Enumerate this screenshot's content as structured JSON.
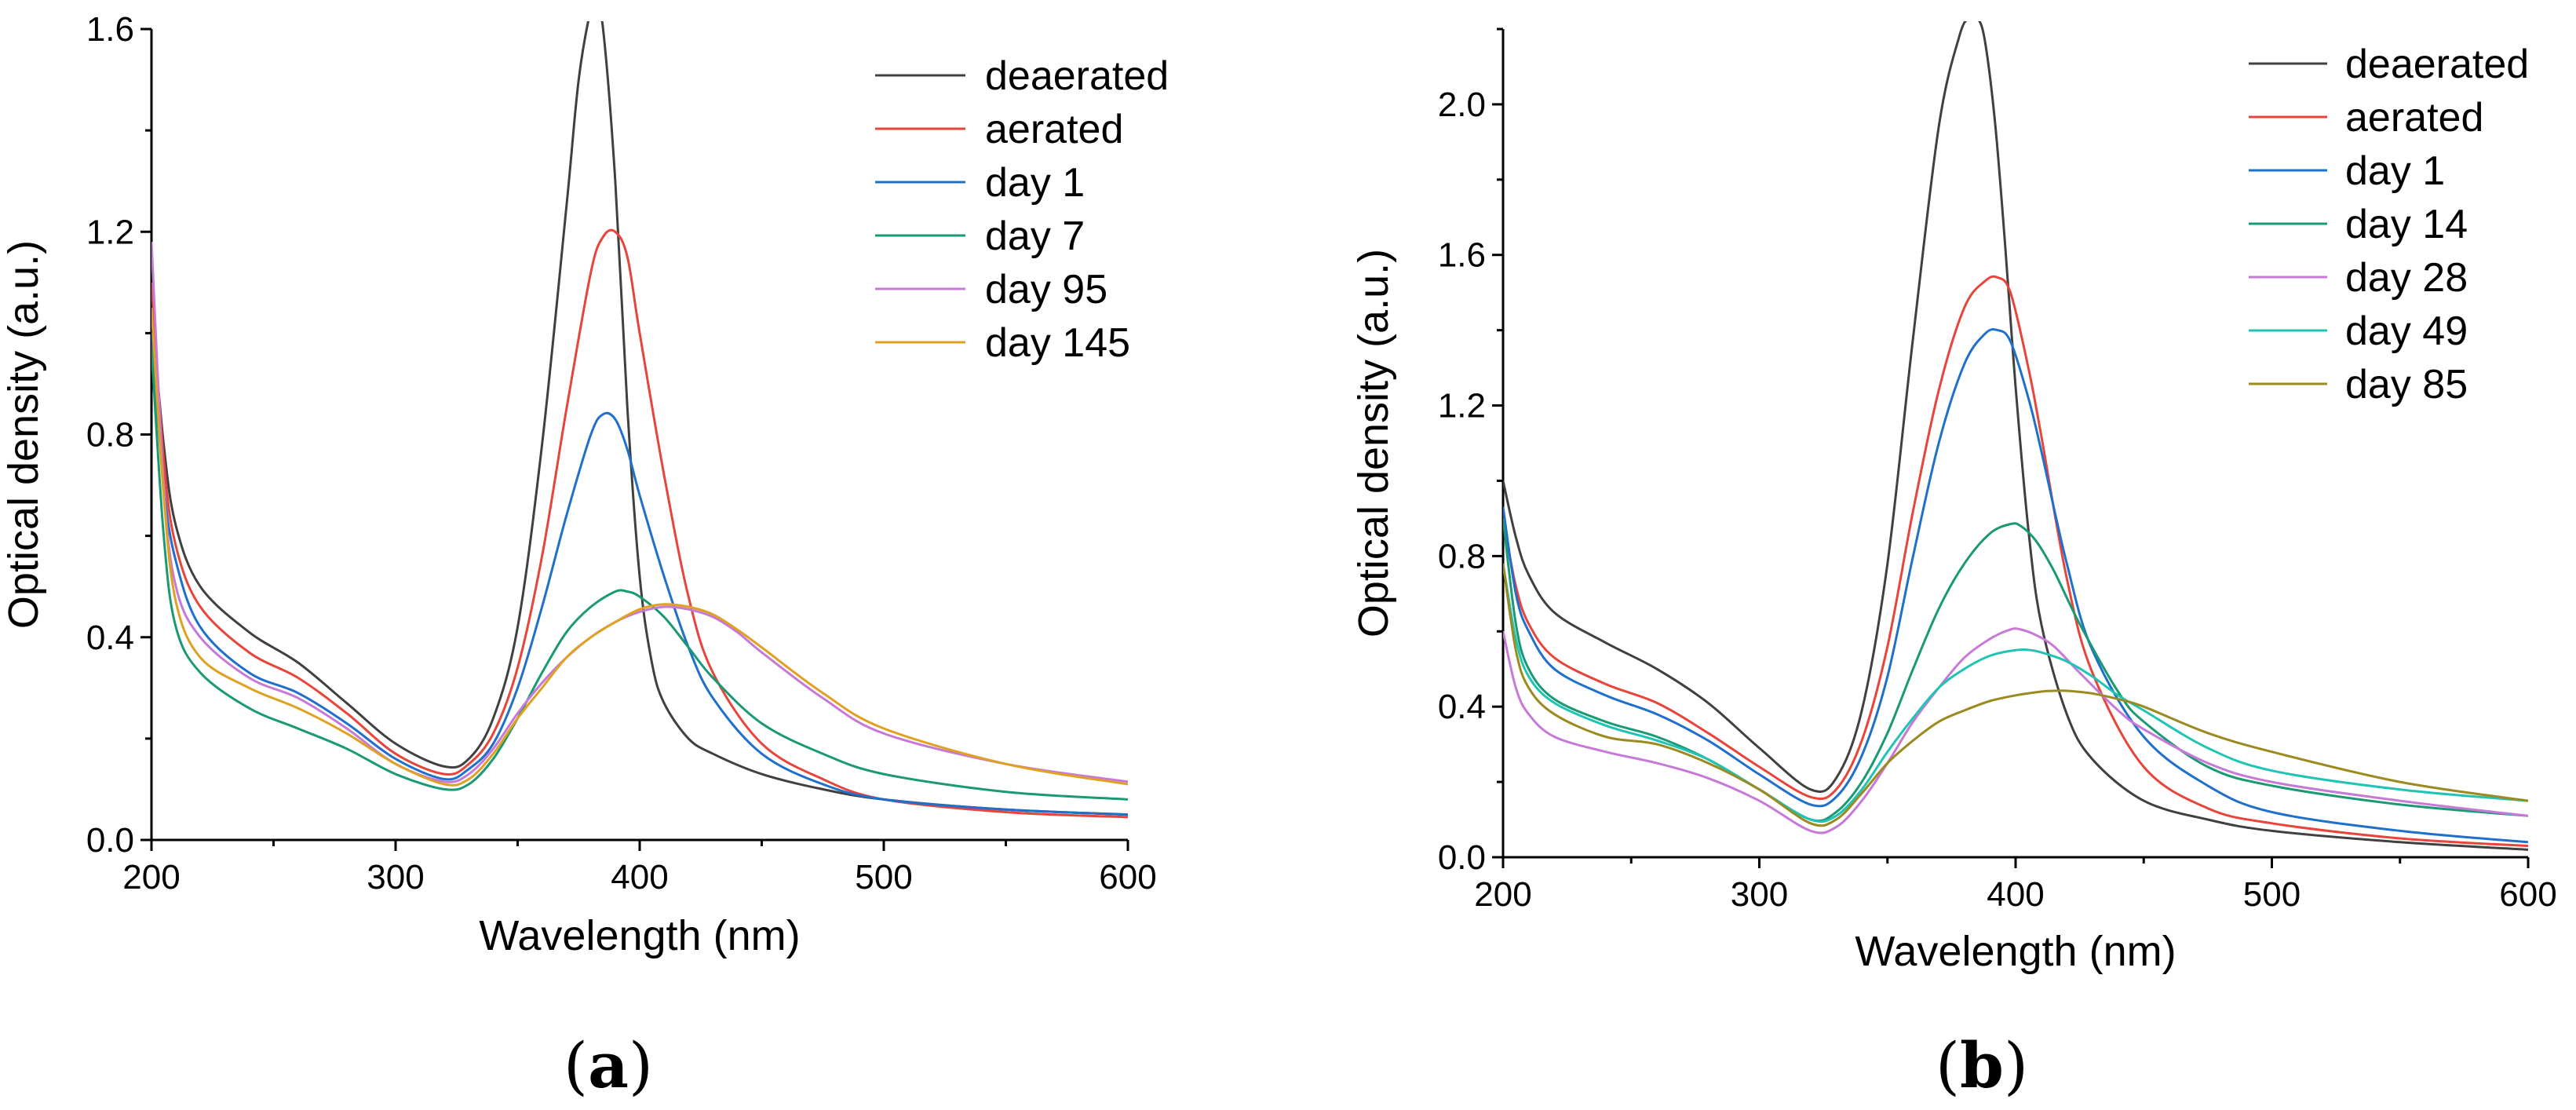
{
  "chart_data": [
    {
      "type": "line",
      "panel_label": "a",
      "xlabel": "Wavelength (nm)",
      "ylabel": "Optical density (a.u.)",
      "xlim": [
        200,
        600
      ],
      "ylim": [
        0,
        1.6
      ],
      "xticks": [
        200,
        300,
        400,
        500,
        600
      ],
      "yticks": [
        0.0,
        0.4,
        0.8,
        1.2,
        1.6
      ],
      "ytick_labels": [
        "0.0",
        "0.4",
        "0.8",
        "1.2",
        "1.6"
      ],
      "legend_position": "top-right",
      "series": [
        {
          "name": "deaerated",
          "color": "#404040",
          "x": [
            200,
            205,
            210,
            220,
            240,
            260,
            280,
            300,
            320,
            330,
            340,
            350,
            360,
            370,
            375,
            380,
            382,
            385,
            390,
            395,
            400,
            405,
            410,
            420,
            430,
            450,
            475,
            500,
            550,
            600
          ],
          "y": [
            1.05,
            0.78,
            0.62,
            0.5,
            0.41,
            0.35,
            0.27,
            0.19,
            0.145,
            0.16,
            0.24,
            0.42,
            0.78,
            1.25,
            1.5,
            1.64,
            1.65,
            1.6,
            1.3,
            0.85,
            0.52,
            0.35,
            0.27,
            0.2,
            0.17,
            0.13,
            0.1,
            0.08,
            0.06,
            0.05
          ]
        },
        {
          "name": "aerated",
          "color": "#e8443a",
          "x": [
            200,
            205,
            210,
            220,
            240,
            260,
            280,
            300,
            320,
            330,
            340,
            350,
            360,
            370,
            380,
            385,
            390,
            395,
            400,
            410,
            420,
            430,
            450,
            475,
            500,
            550,
            600
          ],
          "y": [
            1.1,
            0.75,
            0.58,
            0.46,
            0.37,
            0.32,
            0.25,
            0.17,
            0.13,
            0.15,
            0.21,
            0.34,
            0.56,
            0.85,
            1.12,
            1.19,
            1.2,
            1.15,
            1.0,
            0.72,
            0.48,
            0.33,
            0.19,
            0.12,
            0.08,
            0.055,
            0.045
          ]
        },
        {
          "name": "day 1",
          "color": "#1f6fcc",
          "x": [
            200,
            205,
            210,
            220,
            240,
            260,
            280,
            300,
            320,
            330,
            340,
            350,
            360,
            370,
            380,
            385,
            390,
            395,
            400,
            410,
            420,
            430,
            450,
            475,
            500,
            550,
            600
          ],
          "y": [
            1.0,
            0.7,
            0.55,
            0.42,
            0.33,
            0.29,
            0.23,
            0.16,
            0.12,
            0.14,
            0.19,
            0.3,
            0.46,
            0.64,
            0.8,
            0.84,
            0.83,
            0.77,
            0.68,
            0.52,
            0.38,
            0.28,
            0.17,
            0.11,
            0.08,
            0.06,
            0.05
          ]
        },
        {
          "name": "day 7",
          "color": "#1a9a74",
          "x": [
            200,
            205,
            210,
            220,
            240,
            260,
            280,
            300,
            320,
            330,
            340,
            350,
            360,
            370,
            380,
            390,
            395,
            400,
            410,
            420,
            430,
            450,
            475,
            500,
            550,
            600
          ],
          "y": [
            0.97,
            0.6,
            0.42,
            0.33,
            0.26,
            0.22,
            0.18,
            0.13,
            0.1,
            0.11,
            0.16,
            0.24,
            0.33,
            0.41,
            0.46,
            0.49,
            0.49,
            0.48,
            0.44,
            0.38,
            0.32,
            0.23,
            0.17,
            0.13,
            0.095,
            0.08
          ]
        },
        {
          "name": "day 95",
          "color": "#c779d8",
          "x": [
            200,
            205,
            210,
            220,
            240,
            260,
            280,
            300,
            320,
            330,
            340,
            350,
            360,
            370,
            380,
            390,
            400,
            410,
            420,
            430,
            440,
            450,
            475,
            500,
            550,
            600
          ],
          "y": [
            1.18,
            0.7,
            0.5,
            0.4,
            0.32,
            0.28,
            0.22,
            0.15,
            0.115,
            0.13,
            0.18,
            0.25,
            0.31,
            0.36,
            0.4,
            0.43,
            0.45,
            0.46,
            0.455,
            0.44,
            0.41,
            0.37,
            0.28,
            0.21,
            0.15,
            0.115
          ]
        },
        {
          "name": "day 145",
          "color": "#e0a020",
          "x": [
            200,
            205,
            210,
            220,
            240,
            260,
            280,
            300,
            320,
            330,
            340,
            350,
            360,
            370,
            380,
            390,
            400,
            410,
            420,
            430,
            440,
            450,
            475,
            500,
            550,
            600
          ],
          "y": [
            1.05,
            0.68,
            0.47,
            0.36,
            0.3,
            0.26,
            0.21,
            0.15,
            0.11,
            0.12,
            0.17,
            0.24,
            0.3,
            0.36,
            0.4,
            0.43,
            0.455,
            0.465,
            0.46,
            0.445,
            0.415,
            0.38,
            0.29,
            0.22,
            0.15,
            0.11
          ]
        }
      ]
    },
    {
      "type": "line",
      "panel_label": "b",
      "xlabel": "Wavelength (nm)",
      "ylabel": "Optical density (a.u.)",
      "xlim": [
        200,
        600
      ],
      "ylim": [
        0,
        2.2
      ],
      "xticks": [
        200,
        300,
        400,
        500,
        600
      ],
      "yticks": [
        0.0,
        0.4,
        0.8,
        1.2,
        1.6,
        2.0
      ],
      "ytick_labels": [
        "0.0",
        "0.4",
        "0.8",
        "1.2",
        "1.6",
        "2.0"
      ],
      "legend_position": "top-right",
      "series": [
        {
          "name": "deaerated",
          "color": "#404040",
          "x": [
            200,
            205,
            210,
            220,
            240,
            260,
            280,
            300,
            320,
            330,
            340,
            350,
            360,
            370,
            378,
            382,
            385,
            388,
            392,
            396,
            400,
            405,
            410,
            420,
            430,
            450,
            475,
            500,
            550,
            600
          ],
          "y": [
            1.0,
            0.85,
            0.75,
            0.65,
            0.57,
            0.5,
            0.41,
            0.29,
            0.18,
            0.21,
            0.39,
            0.78,
            1.38,
            1.94,
            2.18,
            2.23,
            2.23,
            2.17,
            1.95,
            1.62,
            1.25,
            0.87,
            0.62,
            0.38,
            0.26,
            0.15,
            0.1,
            0.07,
            0.04,
            0.02
          ]
        },
        {
          "name": "aerated",
          "color": "#e8443a",
          "x": [
            200,
            205,
            210,
            220,
            240,
            260,
            280,
            300,
            320,
            330,
            340,
            350,
            360,
            370,
            380,
            388,
            393,
            398,
            405,
            410,
            420,
            430,
            450,
            475,
            500,
            550,
            600
          ],
          "y": [
            0.9,
            0.72,
            0.62,
            0.53,
            0.46,
            0.41,
            0.33,
            0.24,
            0.16,
            0.18,
            0.31,
            0.56,
            0.92,
            1.24,
            1.46,
            1.53,
            1.54,
            1.5,
            1.3,
            1.12,
            0.74,
            0.49,
            0.24,
            0.13,
            0.09,
            0.05,
            0.03
          ]
        },
        {
          "name": "day 1",
          "color": "#1f6fcc",
          "x": [
            200,
            205,
            210,
            220,
            240,
            260,
            280,
            300,
            320,
            330,
            340,
            350,
            360,
            370,
            380,
            388,
            393,
            398,
            405,
            410,
            420,
            430,
            450,
            475,
            500,
            550,
            600
          ],
          "y": [
            0.93,
            0.7,
            0.6,
            0.5,
            0.43,
            0.38,
            0.31,
            0.22,
            0.14,
            0.16,
            0.27,
            0.48,
            0.8,
            1.1,
            1.31,
            1.39,
            1.4,
            1.37,
            1.22,
            1.08,
            0.78,
            0.55,
            0.32,
            0.19,
            0.12,
            0.07,
            0.04
          ]
        },
        {
          "name": "day 14",
          "color": "#1a9a74",
          "x": [
            200,
            205,
            210,
            220,
            240,
            260,
            280,
            300,
            320,
            330,
            340,
            350,
            360,
            370,
            380,
            390,
            398,
            402,
            408,
            415,
            425,
            440,
            450,
            475,
            500,
            550,
            600
          ],
          "y": [
            0.9,
            0.62,
            0.5,
            0.42,
            0.36,
            0.32,
            0.26,
            0.18,
            0.1,
            0.12,
            0.2,
            0.33,
            0.5,
            0.66,
            0.78,
            0.86,
            0.885,
            0.88,
            0.84,
            0.76,
            0.62,
            0.44,
            0.36,
            0.24,
            0.19,
            0.14,
            0.11
          ]
        },
        {
          "name": "day 28",
          "color": "#c779d8",
          "x": [
            200,
            205,
            210,
            220,
            240,
            260,
            280,
            300,
            320,
            330,
            340,
            350,
            360,
            370,
            380,
            390,
            398,
            402,
            408,
            415,
            425,
            440,
            450,
            475,
            500,
            550,
            600
          ],
          "y": [
            0.6,
            0.45,
            0.38,
            0.32,
            0.28,
            0.25,
            0.21,
            0.15,
            0.07,
            0.08,
            0.15,
            0.25,
            0.36,
            0.45,
            0.53,
            0.58,
            0.605,
            0.605,
            0.59,
            0.56,
            0.49,
            0.39,
            0.34,
            0.25,
            0.2,
            0.15,
            0.11
          ]
        },
        {
          "name": "day 49",
          "color": "#20c4b4",
          "x": [
            200,
            205,
            210,
            220,
            240,
            260,
            280,
            300,
            320,
            330,
            340,
            350,
            360,
            370,
            380,
            390,
            400,
            406,
            412,
            420,
            430,
            440,
            450,
            475,
            500,
            550,
            600
          ],
          "y": [
            0.78,
            0.58,
            0.48,
            0.41,
            0.35,
            0.31,
            0.26,
            0.18,
            0.1,
            0.11,
            0.18,
            0.28,
            0.37,
            0.45,
            0.5,
            0.535,
            0.55,
            0.55,
            0.54,
            0.52,
            0.48,
            0.43,
            0.39,
            0.29,
            0.23,
            0.18,
            0.15
          ]
        },
        {
          "name": "day 85",
          "color": "#9a8a20",
          "x": [
            200,
            205,
            210,
            220,
            240,
            260,
            280,
            300,
            320,
            330,
            340,
            350,
            360,
            370,
            380,
            390,
            400,
            410,
            415,
            420,
            430,
            440,
            450,
            475,
            500,
            550,
            600
          ],
          "y": [
            0.78,
            0.55,
            0.45,
            0.38,
            0.32,
            0.3,
            0.25,
            0.18,
            0.09,
            0.1,
            0.17,
            0.25,
            0.31,
            0.36,
            0.39,
            0.415,
            0.43,
            0.44,
            0.442,
            0.442,
            0.435,
            0.42,
            0.4,
            0.33,
            0.28,
            0.2,
            0.15
          ]
        }
      ]
    }
  ]
}
